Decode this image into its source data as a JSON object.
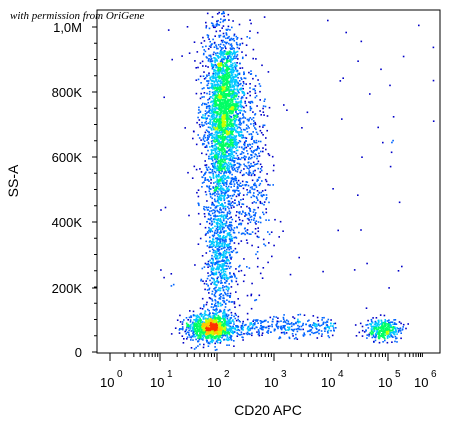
{
  "credit": "with permission from OriGene",
  "chart_data": {
    "type": "scatter",
    "title": "",
    "xlabel": "CD20 APC",
    "ylabel": "SS-A",
    "x_scale": "biexponential",
    "xlim": [
      -10,
      1000000
    ],
    "ylim": [
      0,
      1024000
    ],
    "x_tick_labels": [
      {
        "base": "10",
        "exp": "0"
      },
      {
        "base": "10",
        "exp": "1"
      },
      {
        "base": "10",
        "exp": "2"
      },
      {
        "base": "10",
        "exp": "3"
      },
      {
        "base": "10",
        "exp": "4"
      },
      {
        "base": "10",
        "exp": "5"
      },
      {
        "base": "10",
        "exp": "6"
      }
    ],
    "y_tick_labels": [
      "0",
      "200K",
      "400K",
      "600K",
      "800K",
      "1,0M"
    ],
    "y_tick_values": [
      0,
      200000,
      400000,
      600000,
      800000,
      1000000
    ],
    "grid": false,
    "legend": "none",
    "color_scale": [
      "#0000c8",
      "#0064ff",
      "#00c8ff",
      "#00ff64",
      "#c8ff00",
      "#ffc800",
      "#ff3200"
    ],
    "populations": [
      {
        "label": "",
        "center_x": 100,
        "center_y": 660000,
        "note": "dense vertical cluster"
      },
      {
        "label": "",
        "center_x": 90,
        "center_y": 70000,
        "note": "low side-scatter cluster"
      },
      {
        "label": "",
        "center_x": 70000,
        "center_y": 60000,
        "note": "CD20 positive cluster"
      }
    ]
  }
}
